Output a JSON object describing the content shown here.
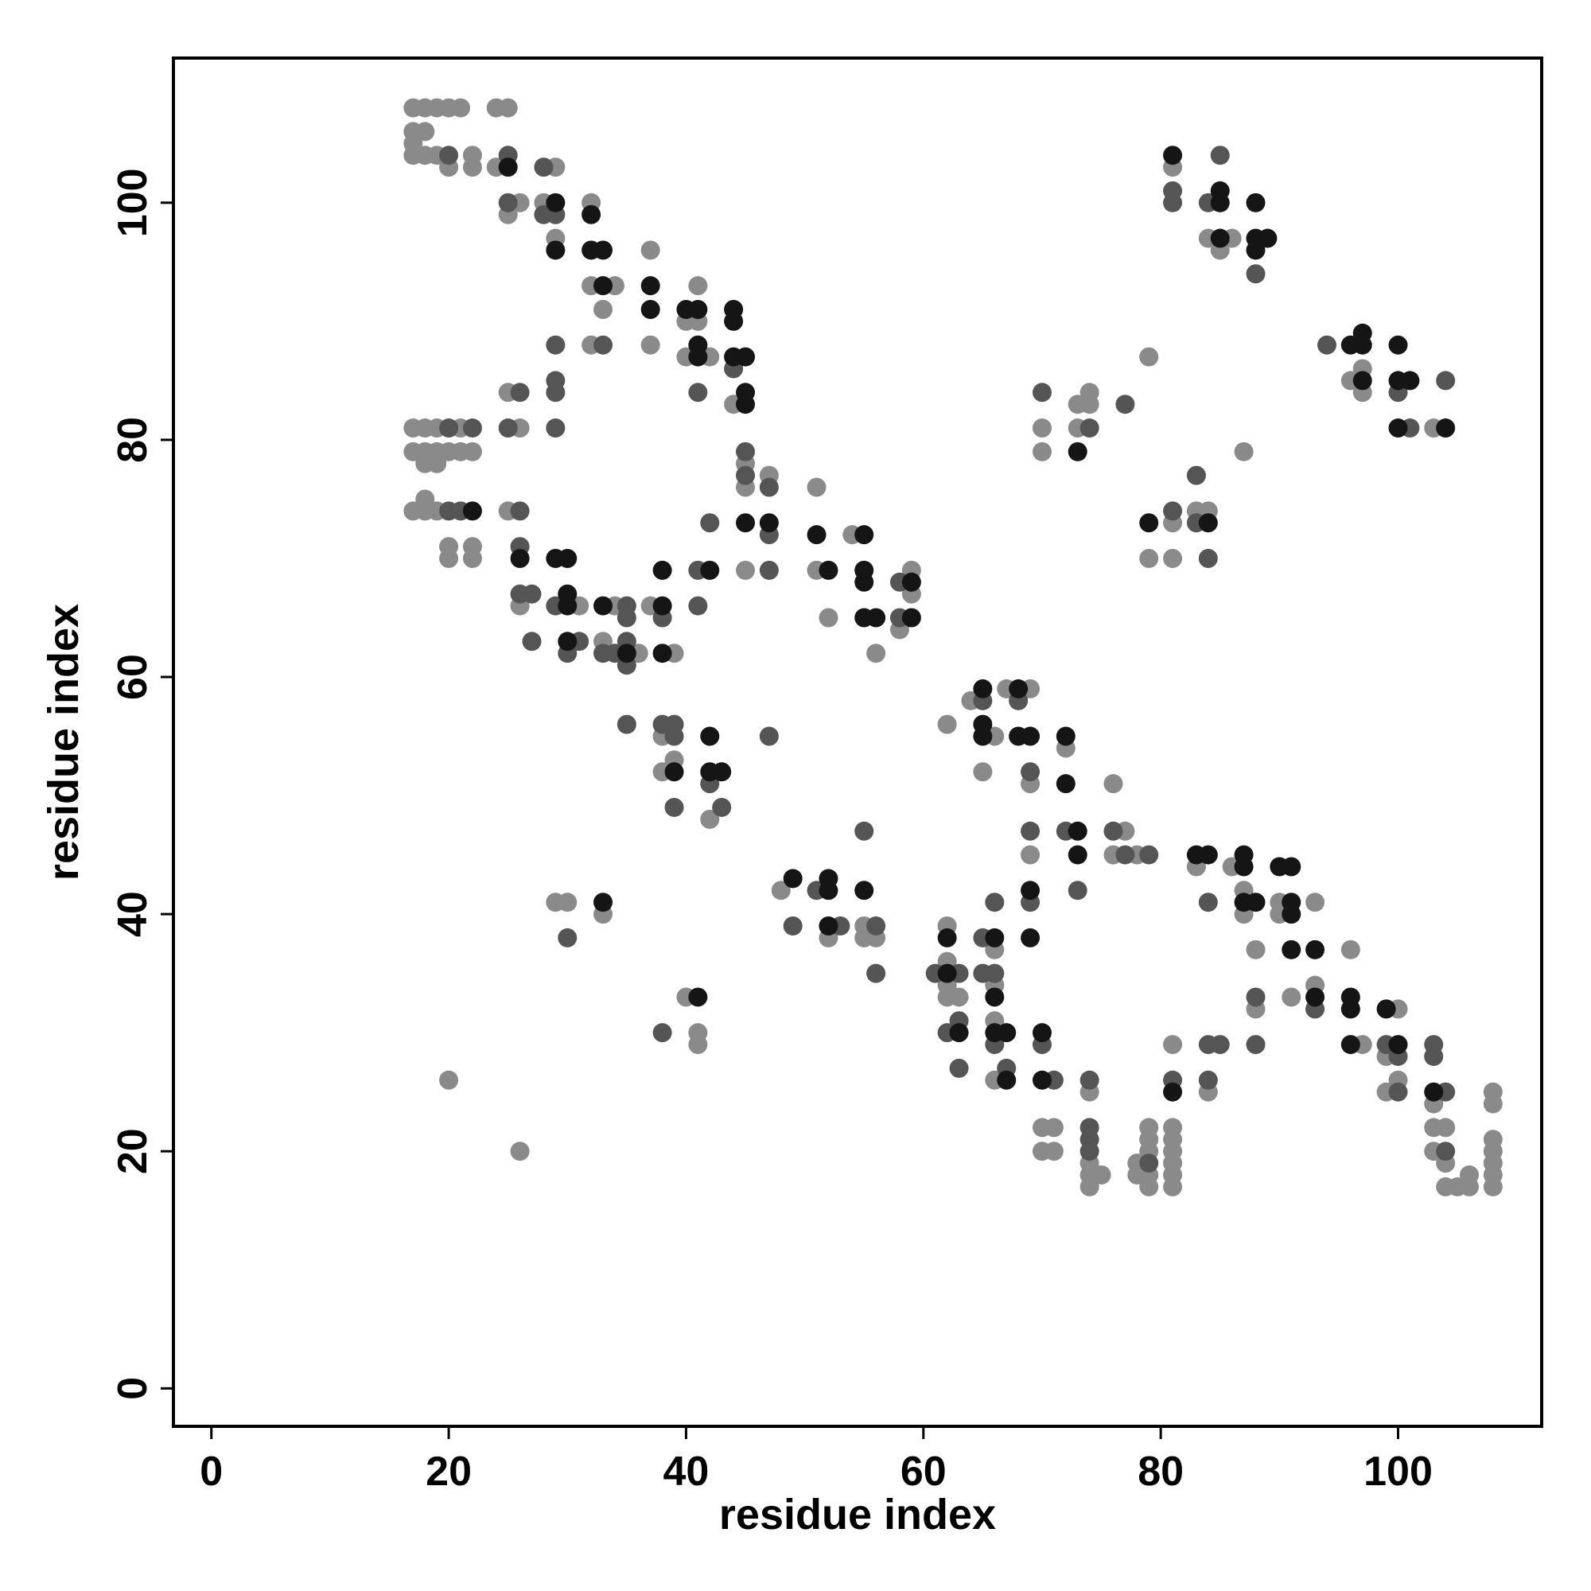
{
  "chart_data": {
    "type": "scatter",
    "x_label": "residue index",
    "y_label": "residue index",
    "xlim": [
      -3.2,
      112.1
    ],
    "ylim": [
      -3.2,
      112.2
    ],
    "xticks": [
      0,
      20,
      40,
      60,
      80,
      100
    ],
    "yticks": [
      0,
      20,
      40,
      60,
      80,
      100
    ],
    "series": [
      {
        "color": "#8a8a8a",
        "x": [
          17,
          18,
          19,
          20,
          21,
          24,
          25,
          17,
          18,
          17,
          17,
          18,
          19,
          22,
          20,
          22,
          24,
          29,
          26,
          28,
          32,
          25,
          29,
          37,
          32,
          34,
          41,
          33,
          40,
          41,
          32,
          37,
          40,
          42,
          25,
          44,
          17,
          18,
          19,
          21,
          26,
          17,
          18,
          19,
          20,
          21,
          22,
          18,
          19,
          45,
          47,
          45,
          51,
          18,
          17,
          18,
          19,
          25,
          54,
          20,
          22,
          20,
          22,
          45,
          51,
          59,
          59,
          26,
          31,
          34,
          37,
          52,
          58,
          33,
          36,
          39,
          56,
          67,
          69,
          64,
          62,
          38,
          66,
          72,
          39,
          38,
          65,
          69,
          76,
          42,
          77,
          69,
          76,
          78,
          83,
          86,
          48,
          87,
          29,
          30,
          90,
          93,
          33,
          87,
          90,
          55,
          62,
          52,
          55,
          56,
          66,
          88,
          96,
          62,
          62,
          66,
          93,
          40,
          62,
          63,
          91,
          88,
          100,
          66,
          41,
          41,
          81,
          97,
          99,
          20,
          66,
          100,
          74,
          84,
          99,
          108,
          103,
          108,
          70,
          71,
          79,
          81,
          103,
          104,
          79,
          81,
          108,
          26,
          70,
          71,
          79,
          81,
          103,
          108,
          74,
          78,
          81,
          104,
          108,
          74,
          75,
          78,
          79,
          81,
          106,
          108,
          74,
          79,
          81,
          104,
          105,
          106,
          108,
          81,
          84,
          86,
          85,
          97,
          96,
          97,
          79,
          74,
          73,
          74,
          70,
          73,
          103,
          70,
          87,
          83,
          84,
          81,
          79,
          81
        ],
        "y": [
          108,
          108,
          108,
          108,
          108,
          108,
          108,
          106,
          106,
          105,
          104,
          104,
          104,
          104,
          103,
          103,
          103,
          103,
          100,
          100,
          100,
          99,
          97,
          96,
          93,
          93,
          93,
          91,
          90,
          90,
          88,
          88,
          87,
          87,
          84,
          83,
          81,
          81,
          81,
          81,
          81,
          79,
          79,
          79,
          79,
          79,
          79,
          78,
          78,
          78,
          77,
          76,
          76,
          75,
          74,
          74,
          74,
          74,
          72,
          71,
          71,
          70,
          70,
          69,
          69,
          69,
          67,
          66,
          66,
          66,
          66,
          65,
          64,
          63,
          62,
          62,
          62,
          59,
          59,
          58,
          56,
          55,
          55,
          54,
          53,
          52,
          52,
          51,
          51,
          48,
          47,
          45,
          45,
          45,
          44,
          44,
          42,
          42,
          41,
          41,
          41,
          41,
          40,
          40,
          40,
          39,
          39,
          38,
          38,
          38,
          37,
          37,
          37,
          36,
          34,
          34,
          34,
          33,
          33,
          33,
          33,
          32,
          32,
          31,
          30,
          29,
          29,
          29,
          28,
          26,
          26,
          26,
          25,
          25,
          25,
          25,
          24,
          24,
          22,
          22,
          22,
          22,
          22,
          22,
          21,
          21,
          21,
          20,
          20,
          20,
          20,
          20,
          20,
          20,
          19,
          19,
          19,
          19,
          19,
          18,
          18,
          18,
          18,
          18,
          18,
          18,
          17,
          17,
          17,
          17,
          17,
          17,
          17,
          103,
          97,
          97,
          96,
          86,
          85,
          84,
          87,
          84,
          83,
          83,
          81,
          81,
          81,
          79,
          79,
          74,
          74,
          73,
          70,
          70
        ]
      },
      {
        "color": "#555555",
        "x": [
          20,
          25,
          28,
          25,
          28,
          29,
          44,
          29,
          33,
          29,
          26,
          29,
          41,
          20,
          22,
          25,
          29,
          45,
          45,
          47,
          20,
          21,
          26,
          42,
          47,
          26,
          41,
          47,
          58,
          26,
          27,
          29,
          35,
          41,
          35,
          38,
          58,
          27,
          31,
          35,
          30,
          33,
          34,
          35,
          65,
          68,
          35,
          38,
          39,
          39,
          47,
          69,
          42,
          39,
          43,
          55,
          69,
          72,
          76,
          77,
          79,
          51,
          73,
          66,
          69,
          84,
          49,
          53,
          56,
          30,
          65,
          56,
          61,
          63,
          65,
          66,
          88,
          93,
          63,
          38,
          62,
          66,
          70,
          84,
          85,
          88,
          99,
          103,
          100,
          103,
          63,
          67,
          71,
          74,
          81,
          84,
          100,
          104,
          74,
          74,
          74,
          104,
          79,
          85,
          81,
          81,
          84,
          88,
          94,
          104,
          100,
          70,
          77,
          74,
          101,
          83,
          81,
          83,
          84
        ],
        "y": [
          104,
          104,
          103,
          100,
          99,
          99,
          86,
          88,
          88,
          85,
          84,
          84,
          84,
          81,
          81,
          81,
          81,
          79,
          77,
          76,
          74,
          74,
          74,
          73,
          72,
          71,
          69,
          69,
          68,
          67,
          67,
          66,
          66,
          66,
          65,
          65,
          65,
          63,
          63,
          63,
          62,
          62,
          62,
          61,
          58,
          58,
          56,
          56,
          56,
          55,
          55,
          52,
          51,
          49,
          49,
          47,
          47,
          47,
          47,
          45,
          45,
          42,
          42,
          41,
          41,
          41,
          39,
          39,
          39,
          38,
          38,
          35,
          35,
          35,
          35,
          35,
          33,
          32,
          31,
          30,
          30,
          29,
          29,
          29,
          29,
          29,
          29,
          29,
          28,
          28,
          27,
          27,
          26,
          26,
          26,
          26,
          25,
          25,
          22,
          21,
          20,
          20,
          19,
          104,
          101,
          100,
          100,
          94,
          88,
          85,
          84,
          84,
          83,
          81,
          81,
          77,
          74,
          73,
          70
        ]
      },
      {
        "color": "#151515",
        "x": [
          25,
          29,
          32,
          29,
          32,
          33,
          33,
          37,
          37,
          40,
          41,
          44,
          44,
          41,
          41,
          44,
          45,
          45,
          45,
          22,
          45,
          47,
          51,
          55,
          26,
          29,
          30,
          38,
          42,
          52,
          55,
          55,
          59,
          30,
          30,
          33,
          38,
          55,
          56,
          59,
          30,
          35,
          38,
          65,
          68,
          65,
          42,
          65,
          68,
          69,
          72,
          39,
          42,
          43,
          72,
          73,
          73,
          83,
          84,
          87,
          87,
          90,
          91,
          49,
          52,
          52,
          55,
          69,
          33,
          87,
          88,
          91,
          91,
          52,
          62,
          66,
          69,
          91,
          93,
          62,
          41,
          66,
          93,
          96,
          96,
          99,
          63,
          66,
          67,
          70,
          96,
          100,
          67,
          70,
          81,
          103,
          81,
          85,
          85,
          88,
          85,
          88,
          89,
          88,
          97,
          96,
          97,
          100,
          97,
          100,
          101,
          100,
          104,
          73,
          79,
          84
        ],
        "y": [
          103,
          100,
          99,
          96,
          96,
          96,
          93,
          93,
          91,
          91,
          91,
          91,
          90,
          88,
          87,
          87,
          87,
          84,
          83,
          74,
          73,
          73,
          72,
          72,
          70,
          70,
          70,
          69,
          69,
          69,
          69,
          68,
          68,
          67,
          66,
          66,
          66,
          65,
          65,
          65,
          63,
          62,
          62,
          59,
          59,
          56,
          55,
          55,
          55,
          55,
          55,
          52,
          52,
          52,
          51,
          47,
          45,
          45,
          45,
          45,
          44,
          44,
          44,
          43,
          43,
          42,
          42,
          42,
          41,
          41,
          41,
          41,
          40,
          39,
          38,
          38,
          38,
          37,
          37,
          35,
          33,
          33,
          33,
          33,
          32,
          32,
          30,
          30,
          30,
          30,
          29,
          29,
          26,
          26,
          25,
          25,
          104,
          101,
          100,
          100,
          97,
          97,
          97,
          96,
          89,
          88,
          88,
          88,
          85,
          85,
          85,
          81,
          81,
          79,
          73,
          73
        ]
      }
    ]
  }
}
